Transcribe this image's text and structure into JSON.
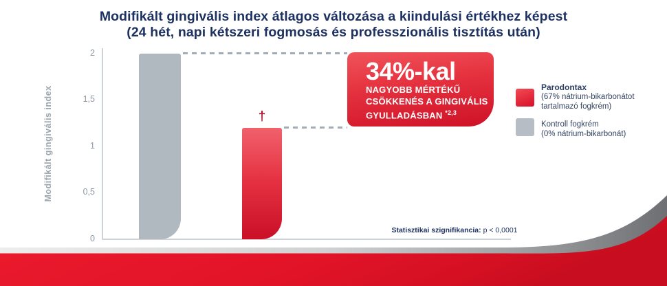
{
  "title": {
    "line1": "Modifikált gingivális index átlagos változása a kiindulási értékhez képest",
    "line2": "(24 hét, napi kétszeri fogmosás és professzionális tisztítás után)"
  },
  "y_axis": {
    "label": "Modifikált gingivális index",
    "ticks": [
      "2",
      "1,5",
      "1",
      "0,5",
      "0"
    ]
  },
  "markers": {
    "dagger": "†"
  },
  "callout": {
    "headline": "34%-kal",
    "line1": "NAGYOBB MÉRTÉKŰ",
    "line2": "CSÖKKENÉS A GINGIVÁLIS",
    "line3": "GYULLADÁSBAN",
    "superscript": "*2,3"
  },
  "legend": {
    "items": [
      {
        "title": "Parodontax",
        "subtitle": "(67% nátrium-bikarbonátot tartalmazó fogkrém)",
        "swatch_color": "#e4142a"
      },
      {
        "title": "Kontroll fogkrém",
        "subtitle": "(0% nátrium-bikarbonát)",
        "swatch_color": "#b6bdc4"
      }
    ]
  },
  "footnote": {
    "label": "Statisztikai szignifikancia:",
    "value": "p < 0,0001"
  },
  "colors": {
    "brand_red": "#e4142a",
    "navy_text": "#1d3161",
    "bar_gray": "#b1b9c0",
    "bar_red_top": "#f0616b",
    "bar_red_bottom": "#ca0f27",
    "dash_gray": "#a2acb7",
    "tick_gray": "#8c98a4",
    "axis_gray": "#ccd3d9",
    "swoosh_silver": "#9a9c9e"
  },
  "chart_data": {
    "type": "bar",
    "title": "Modifikált gingivális index átlagos változása a kiindulási értékhez képest (24 hét, napi kétszeri fogmosás és professzionális tisztítás után)",
    "xlabel": "",
    "ylabel": "Modifikált gingivális index",
    "ylim": [
      0,
      2
    ],
    "yticks": [
      0,
      0.5,
      1,
      1.5,
      2
    ],
    "ytick_labels": [
      "0",
      "0,5",
      "1",
      "1,5",
      "2"
    ],
    "grid": false,
    "legend_position": "right",
    "categories": [
      "Kontroll fogkrém (0% nátrium-bikarbonát)",
      "Parodontax (67% nátrium-bikarbonátot tartalmazó fogkrém)"
    ],
    "values": [
      2.0,
      1.2
    ],
    "bar_colors": [
      "#b1b9c0",
      "#e4142a"
    ],
    "annotations": [
      {
        "type": "callout",
        "text": "34%-kal nagyobb mértékű csökkenés a gingivális gyulladásban *2,3"
      },
      {
        "type": "marker",
        "symbol": "†",
        "on_category": "Parodontax (67% nátrium-bikarbonátot tartalmazó fogkrém)"
      },
      {
        "type": "footnote",
        "text": "Statisztikai szignifikancia: p < 0,0001"
      }
    ]
  }
}
